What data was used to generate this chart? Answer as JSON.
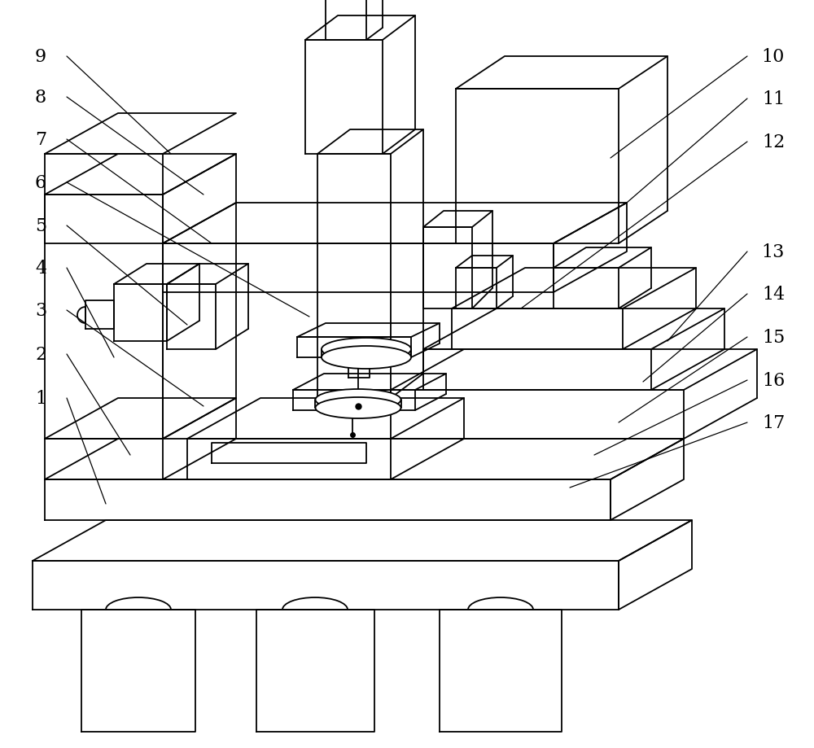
{
  "background_color": "#ffffff",
  "line_color": "#000000",
  "label_fontsize": 16,
  "figsize": [
    10.0,
    9.2
  ],
  "dpi": 100
}
